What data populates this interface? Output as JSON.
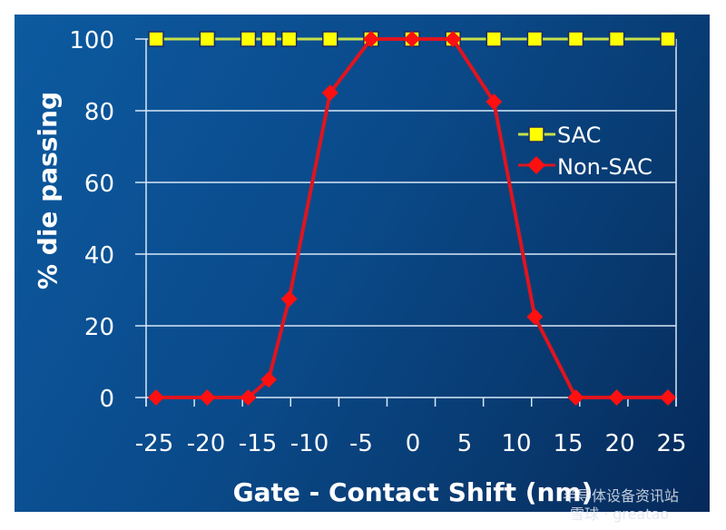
{
  "chart_data": {
    "type": "line",
    "title": "",
    "xlabel": "Gate - Contact Shift (nm)",
    "ylabel": "% die passing",
    "x": [
      -25,
      -20,
      -16,
      -14,
      -12,
      -8,
      -4,
      0,
      4,
      8,
      12,
      16,
      20,
      25
    ],
    "x_tick_labels": [
      "-25",
      "-20",
      "-15",
      "-10",
      "-5",
      "0",
      "5",
      "10",
      "15",
      "20",
      "25"
    ],
    "y_tick_labels": [
      "0",
      "20",
      "40",
      "60",
      "80",
      "100"
    ],
    "ylim": [
      0,
      100
    ],
    "xlim": [
      -25,
      25
    ],
    "grid": true,
    "legend_position": "right-middle",
    "series": [
      {
        "name": "SAC",
        "color": "#ffff00",
        "line_color": "#c8e04a",
        "marker": "square",
        "values": [
          100,
          100,
          100,
          100,
          100,
          100,
          100,
          100,
          100,
          100,
          100,
          100,
          100,
          100
        ]
      },
      {
        "name": "Non-SAC",
        "color": "#ff1010",
        "line_color": "#e0141e",
        "marker": "diamond",
        "values": [
          0,
          0,
          0,
          5,
          27.5,
          85,
          100,
          100,
          100,
          82.5,
          22.5,
          0,
          0,
          0
        ]
      }
    ]
  },
  "watermark": {
    "line1": "半导体设备资讯站",
    "line2": "雪球 · greatao"
  },
  "colors": {
    "background_start": "#0d5aa0",
    "background_end": "#06295a",
    "grid": "#d8e8f8",
    "text": "#ffffff"
  }
}
